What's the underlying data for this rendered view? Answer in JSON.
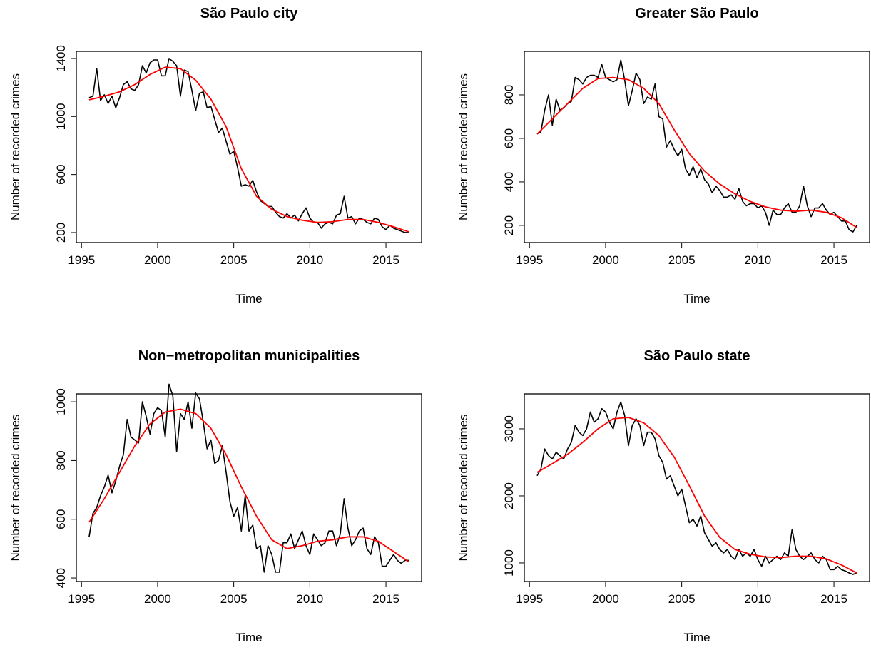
{
  "chart_data": [
    {
      "type": "line",
      "title": "São Paulo city",
      "x_label": "Time",
      "y_label": "Number of recorded crimes",
      "xlim": [
        1994.66,
        2017.34
      ],
      "xticks": [
        1995,
        2000,
        2005,
        2010,
        2015
      ],
      "ylim": [
        131,
        1449
      ],
      "yticks": [
        200,
        600,
        1000,
        1400
      ],
      "series": [
        {
          "color": "#000000",
          "x": [
            1995.5,
            1995.75,
            1996,
            1996.25,
            1996.5,
            1996.75,
            1997,
            1997.25,
            1997.5,
            1997.75,
            1998,
            1998.25,
            1998.5,
            1998.75,
            1999,
            1999.25,
            1999.5,
            1999.75,
            2000,
            2000.25,
            2000.5,
            2000.75,
            2001,
            2001.25,
            2001.5,
            2001.75,
            2002,
            2002.25,
            2002.5,
            2002.75,
            2003,
            2003.25,
            2003.5,
            2003.75,
            2004,
            2004.25,
            2004.5,
            2004.75,
            2005,
            2005.25,
            2005.5,
            2005.75,
            2006,
            2006.25,
            2006.5,
            2006.75,
            2007,
            2007.25,
            2007.5,
            2007.75,
            2008,
            2008.25,
            2008.5,
            2008.75,
            2009,
            2009.25,
            2009.5,
            2009.75,
            2010,
            2010.25,
            2010.5,
            2010.75,
            2011,
            2011.25,
            2011.5,
            2011.75,
            2012,
            2012.25,
            2012.5,
            2012.75,
            2013,
            2013.25,
            2013.5,
            2013.75,
            2014,
            2014.25,
            2014.5,
            2014.75,
            2015,
            2015.25,
            2015.5,
            2015.75,
            2016,
            2016.25,
            2016.5
          ],
          "values": [
            1130,
            1140,
            1330,
            1110,
            1150,
            1090,
            1140,
            1060,
            1130,
            1220,
            1240,
            1190,
            1180,
            1220,
            1350,
            1300,
            1370,
            1390,
            1390,
            1280,
            1280,
            1400,
            1380,
            1350,
            1140,
            1320,
            1310,
            1180,
            1040,
            1160,
            1170,
            1060,
            1070,
            980,
            890,
            920,
            830,
            740,
            760,
            650,
            520,
            530,
            520,
            560,
            480,
            420,
            400,
            380,
            380,
            340,
            310,
            300,
            330,
            300,
            320,
            280,
            330,
            370,
            300,
            270,
            270,
            230,
            260,
            270,
            260,
            320,
            330,
            450,
            300,
            310,
            260,
            300,
            290,
            270,
            260,
            300,
            290,
            240,
            220,
            250,
            230,
            220,
            210,
            200,
            200
          ]
        },
        {
          "color": "#ff0000",
          "x": [
            1995.5,
            1996.5,
            1997.5,
            1998.5,
            1999.5,
            2000.5,
            2001.5,
            2002.5,
            2003.5,
            2004.5,
            2005.5,
            2006.5,
            2007.5,
            2008.5,
            2009.5,
            2010.5,
            2011.5,
            2012.5,
            2013.5,
            2014.5,
            2015.5,
            2016.5
          ],
          "values": [
            1115,
            1140,
            1170,
            1220,
            1290,
            1340,
            1330,
            1250,
            1120,
            930,
            640,
            450,
            360,
            310,
            285,
            270,
            275,
            290,
            290,
            270,
            240,
            205
          ]
        }
      ]
    },
    {
      "type": "line",
      "title": "Greater São Paulo",
      "x_label": "Time",
      "y_label": "Number of recorded crimes",
      "xlim": [
        1994.66,
        2017.34
      ],
      "xticks": [
        1995,
        2000,
        2005,
        2010,
        2015
      ],
      "ylim": [
        121,
        1000
      ],
      "yticks": [
        200,
        400,
        600,
        800
      ],
      "series": [
        {
          "color": "#000000",
          "x": [
            1995.5,
            1995.75,
            1996,
            1996.25,
            1996.5,
            1996.75,
            1997,
            1997.25,
            1997.5,
            1997.75,
            1998,
            1998.25,
            1998.5,
            1998.75,
            1999,
            1999.25,
            1999.5,
            1999.75,
            2000,
            2000.25,
            2000.5,
            2000.75,
            2001,
            2001.25,
            2001.5,
            2001.75,
            2002,
            2002.25,
            2002.5,
            2002.75,
            2003,
            2003.25,
            2003.5,
            2003.75,
            2004,
            2004.25,
            2004.5,
            2004.75,
            2005,
            2005.25,
            2005.5,
            2005.75,
            2006,
            2006.25,
            2006.5,
            2006.75,
            2007,
            2007.25,
            2007.5,
            2007.75,
            2008,
            2008.25,
            2008.5,
            2008.75,
            2009,
            2009.25,
            2009.5,
            2009.75,
            2010,
            2010.25,
            2010.5,
            2010.75,
            2011,
            2011.25,
            2011.5,
            2011.75,
            2012,
            2012.25,
            2012.5,
            2012.75,
            2013,
            2013.25,
            2013.5,
            2013.75,
            2014,
            2014.25,
            2014.5,
            2014.75,
            2015,
            2015.25,
            2015.5,
            2015.75,
            2016,
            2016.25,
            2016.5
          ],
          "values": [
            620,
            630,
            730,
            800,
            660,
            780,
            730,
            740,
            760,
            770,
            880,
            870,
            850,
            880,
            890,
            890,
            880,
            940,
            880,
            870,
            860,
            870,
            960,
            870,
            750,
            820,
            900,
            870,
            760,
            790,
            780,
            850,
            700,
            690,
            560,
            590,
            550,
            520,
            550,
            460,
            430,
            470,
            420,
            460,
            410,
            390,
            350,
            380,
            360,
            330,
            330,
            340,
            320,
            370,
            310,
            290,
            300,
            300,
            280,
            290,
            260,
            200,
            270,
            250,
            250,
            280,
            300,
            260,
            260,
            290,
            380,
            290,
            240,
            280,
            280,
            300,
            270,
            250,
            260,
            240,
            220,
            220,
            180,
            170,
            200
          ]
        },
        {
          "color": "#ff0000",
          "x": [
            1995.5,
            1996.5,
            1997.5,
            1998.5,
            1999.5,
            2000.5,
            2001.5,
            2002.5,
            2003.5,
            2004.5,
            2005.5,
            2006.5,
            2007.5,
            2008.5,
            2009.5,
            2010.5,
            2011.5,
            2012.5,
            2013.5,
            2014.5,
            2015.5,
            2016.5
          ],
          "values": [
            620,
            690,
            760,
            830,
            875,
            880,
            870,
            830,
            760,
            640,
            530,
            450,
            390,
            345,
            310,
            285,
            270,
            265,
            270,
            260,
            235,
            190
          ]
        }
      ]
    },
    {
      "type": "line",
      "title": "Non−metropolitan municipalities",
      "x_label": "Time",
      "y_label": "Number of recorded crimes",
      "xlim": [
        1994.66,
        2017.34
      ],
      "xticks": [
        1995,
        2000,
        2005,
        2010,
        2015
      ],
      "ylim": [
        388,
        1027
      ],
      "yticks": [
        400,
        600,
        800,
        1000
      ],
      "series": [
        {
          "color": "#000000",
          "x": [
            1995.5,
            1995.75,
            1996,
            1996.25,
            1996.5,
            1996.75,
            1997,
            1997.25,
            1997.5,
            1997.75,
            1998,
            1998.25,
            1998.5,
            1998.75,
            1999,
            1999.25,
            1999.5,
            1999.75,
            2000,
            2000.25,
            2000.5,
            2000.75,
            2001,
            2001.25,
            2001.5,
            2001.75,
            2002,
            2002.25,
            2002.5,
            2002.75,
            2003,
            2003.25,
            2003.5,
            2003.75,
            2004,
            2004.25,
            2004.5,
            2004.75,
            2005,
            2005.25,
            2005.5,
            2005.75,
            2006,
            2006.25,
            2006.5,
            2006.75,
            2007,
            2007.25,
            2007.5,
            2007.75,
            2008,
            2008.25,
            2008.5,
            2008.75,
            2009,
            2009.25,
            2009.5,
            2009.75,
            2010,
            2010.25,
            2010.5,
            2010.75,
            2011,
            2011.25,
            2011.5,
            2011.75,
            2012,
            2012.25,
            2012.5,
            2012.75,
            2013,
            2013.25,
            2013.5,
            2013.75,
            2014,
            2014.25,
            2014.5,
            2014.75,
            2015,
            2015.25,
            2015.5,
            2015.75,
            2016,
            2016.25,
            2016.5
          ],
          "values": [
            540,
            620,
            640,
            680,
            710,
            750,
            690,
            730,
            780,
            820,
            940,
            880,
            870,
            860,
            1000,
            950,
            890,
            960,
            980,
            970,
            880,
            1060,
            1020,
            830,
            960,
            940,
            1000,
            910,
            1030,
            1010,
            930,
            840,
            870,
            790,
            800,
            850,
            760,
            660,
            610,
            640,
            560,
            680,
            560,
            580,
            500,
            510,
            420,
            510,
            480,
            420,
            420,
            520,
            520,
            550,
            500,
            530,
            560,
            510,
            480,
            550,
            530,
            510,
            520,
            560,
            560,
            510,
            550,
            670,
            570,
            510,
            530,
            560,
            570,
            500,
            480,
            540,
            520,
            440,
            440,
            460,
            480,
            460,
            450,
            460,
            460
          ]
        },
        {
          "color": "#ff0000",
          "x": [
            1995.5,
            1996.5,
            1997.5,
            1998.5,
            1999.5,
            2000.5,
            2001.5,
            2002.5,
            2003.5,
            2004.5,
            2005.5,
            2006.5,
            2007.5,
            2008.5,
            2009.5,
            2010.5,
            2011.5,
            2012.5,
            2013.5,
            2014.5,
            2015.5,
            2016.5
          ],
          "values": [
            590,
            670,
            760,
            850,
            925,
            965,
            975,
            960,
            910,
            820,
            710,
            610,
            530,
            500,
            510,
            525,
            530,
            540,
            540,
            525,
            490,
            455
          ]
        }
      ]
    },
    {
      "type": "line",
      "title": "São Paulo state",
      "x_label": "Time",
      "y_label": "Number of recorded crimes",
      "xlim": [
        1994.66,
        2017.34
      ],
      "xticks": [
        1995,
        2000,
        2005,
        2010,
        2015
      ],
      "ylim": [
        723,
        3521
      ],
      "yticks": [
        1000,
        2000,
        3000
      ],
      "series": [
        {
          "color": "#000000",
          "x": [
            1995.5,
            1995.75,
            1996,
            1996.25,
            1996.5,
            1996.75,
            1997,
            1997.25,
            1997.5,
            1997.75,
            1998,
            1998.25,
            1998.5,
            1998.75,
            1999,
            1999.25,
            1999.5,
            1999.75,
            2000,
            2000.25,
            2000.5,
            2000.75,
            2001,
            2001.25,
            2001.5,
            2001.75,
            2002,
            2002.25,
            2002.5,
            2002.75,
            2003,
            2003.25,
            2003.5,
            2003.75,
            2004,
            2004.25,
            2004.5,
            2004.75,
            2005,
            2005.25,
            2005.5,
            2005.75,
            2006,
            2006.25,
            2006.5,
            2006.75,
            2007,
            2007.25,
            2007.5,
            2007.75,
            2008,
            2008.25,
            2008.5,
            2008.75,
            2009,
            2009.25,
            2009.5,
            2009.75,
            2010,
            2010.25,
            2010.5,
            2010.75,
            2011,
            2011.25,
            2011.5,
            2011.75,
            2012,
            2012.25,
            2012.5,
            2012.75,
            2013,
            2013.25,
            2013.5,
            2013.75,
            2014,
            2014.25,
            2014.5,
            2014.75,
            2015,
            2015.25,
            2015.5,
            2015.75,
            2016,
            2016.25,
            2016.5
          ],
          "values": [
            2300,
            2400,
            2700,
            2600,
            2550,
            2650,
            2600,
            2550,
            2700,
            2800,
            3050,
            2950,
            2900,
            3000,
            3250,
            3100,
            3150,
            3300,
            3250,
            3100,
            3000,
            3250,
            3400,
            3200,
            2750,
            3050,
            3150,
            3050,
            2750,
            2950,
            2950,
            2850,
            2600,
            2500,
            2250,
            2300,
            2150,
            2000,
            2100,
            1850,
            1600,
            1650,
            1550,
            1700,
            1450,
            1350,
            1250,
            1300,
            1200,
            1150,
            1200,
            1100,
            1050,
            1200,
            1100,
            1150,
            1100,
            1200,
            1050,
            950,
            1100,
            1000,
            1050,
            1100,
            1050,
            1150,
            1100,
            1500,
            1200,
            1100,
            1050,
            1100,
            1150,
            1050,
            1000,
            1100,
            1050,
            900,
            900,
            950,
            900,
            880,
            850,
            830,
            850
          ]
        },
        {
          "color": "#ff0000",
          "x": [
            1995.5,
            1996.5,
            1997.5,
            1998.5,
            1999.5,
            2000.5,
            2001.5,
            2002.5,
            2003.5,
            2004.5,
            2005.5,
            2006.5,
            2007.5,
            2008.5,
            2009.5,
            2010.5,
            2011.5,
            2012.5,
            2013.5,
            2014.5,
            2015.5,
            2016.5
          ],
          "values": [
            2350,
            2480,
            2620,
            2800,
            3000,
            3150,
            3170,
            3090,
            2900,
            2580,
            2150,
            1700,
            1380,
            1200,
            1130,
            1090,
            1080,
            1100,
            1100,
            1060,
            970,
            850
          ]
        }
      ]
    }
  ]
}
